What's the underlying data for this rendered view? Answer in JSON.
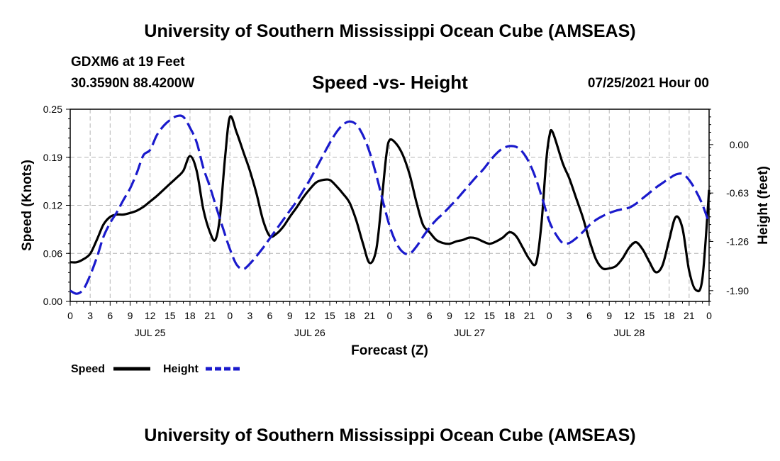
{
  "header": {
    "title": "University of Southern Mississippi Ocean Cube (AMSEAS)",
    "station": "GDXM6 at 19 Feet",
    "coords": "30.3590N  88.4200W",
    "datetime": "07/25/2021 Hour 00"
  },
  "footer": {
    "title": "University of Southern Mississippi Ocean Cube (AMSEAS)"
  },
  "colors": {
    "speed": "#000000",
    "height": "#1a1acc",
    "grid": "#b4b4b4"
  },
  "chart_data": {
    "type": "line",
    "title": "Speed -vs- Height",
    "xlabel": "Forecast (Z)",
    "ylabel": "Speed (Knots)",
    "y2label": "Height (feet)",
    "xlim": [
      0,
      96
    ],
    "ylim": [
      0,
      0.25
    ],
    "y2lim": [
      -2.04,
      0.46
    ],
    "x_ticks": [
      0,
      3,
      6,
      9,
      12,
      15,
      18,
      21,
      24,
      27,
      30,
      33,
      36,
      39,
      42,
      45,
      48,
      51,
      54,
      57,
      60,
      63,
      66,
      69,
      72,
      75,
      78,
      81,
      84,
      87,
      90,
      93,
      96
    ],
    "x_tick_labels": [
      "0",
      "3",
      "6",
      "9",
      "12",
      "15",
      "18",
      "21",
      "0",
      "3",
      "6",
      "9",
      "12",
      "15",
      "18",
      "21",
      "0",
      "3",
      "6",
      "9",
      "12",
      "15",
      "18",
      "21",
      "0",
      "3",
      "6",
      "9",
      "12",
      "15",
      "18",
      "21",
      "0"
    ],
    "day_labels": [
      {
        "hour": 12,
        "label": "JUL 25"
      },
      {
        "hour": 36,
        "label": "JUL 26"
      },
      {
        "hour": 60,
        "label": "JUL 27"
      },
      {
        "hour": 84,
        "label": "JUL 28"
      }
    ],
    "y_ticks": [
      0,
      0.0625,
      0.125,
      0.1875,
      0.25
    ],
    "y_tick_labels": [
      "0.00",
      "0.06",
      "0.12",
      "0.19",
      "0.25"
    ],
    "y2_ticks": [
      0.0,
      -0.63,
      -1.26,
      -1.9
    ],
    "y2_tick_labels": [
      "0.00",
      "-0.63",
      "-1.26",
      "-1.90"
    ],
    "series": [
      {
        "name": "Speed",
        "axis": "left",
        "style": "solid",
        "points": [
          [
            0,
            0.051
          ],
          [
            1,
            0.051
          ],
          [
            2,
            0.055
          ],
          [
            3,
            0.062
          ],
          [
            4,
            0.08
          ],
          [
            5,
            0.1
          ],
          [
            6,
            0.11
          ],
          [
            7,
            0.113
          ],
          [
            8,
            0.113
          ],
          [
            9,
            0.115
          ],
          [
            10,
            0.118
          ],
          [
            11,
            0.123
          ],
          [
            12,
            0.13
          ],
          [
            13,
            0.137
          ],
          [
            14,
            0.145
          ],
          [
            15,
            0.153
          ],
          [
            16,
            0.161
          ],
          [
            17,
            0.17
          ],
          [
            18,
            0.189
          ],
          [
            19,
            0.17
          ],
          [
            20,
            0.12
          ],
          [
            21,
            0.09
          ],
          [
            21.8,
            0.08
          ],
          [
            22.5,
            0.11
          ],
          [
            23.3,
            0.19
          ],
          [
            24,
            0.24
          ],
          [
            25,
            0.22
          ],
          [
            26,
            0.195
          ],
          [
            27,
            0.17
          ],
          [
            28,
            0.14
          ],
          [
            29,
            0.105
          ],
          [
            30,
            0.085
          ],
          [
            31,
            0.088
          ],
          [
            32,
            0.097
          ],
          [
            33,
            0.11
          ],
          [
            34,
            0.122
          ],
          [
            35,
            0.135
          ],
          [
            36,
            0.146
          ],
          [
            37,
            0.155
          ],
          [
            38,
            0.158
          ],
          [
            39,
            0.158
          ],
          [
            40,
            0.15
          ],
          [
            41,
            0.14
          ],
          [
            42,
            0.128
          ],
          [
            43,
            0.105
          ],
          [
            44,
            0.075
          ],
          [
            45,
            0.05
          ],
          [
            46,
            0.068
          ],
          [
            46.8,
            0.13
          ],
          [
            47.5,
            0.19
          ],
          [
            48,
            0.21
          ],
          [
            49,
            0.205
          ],
          [
            50,
            0.19
          ],
          [
            51,
            0.165
          ],
          [
            52,
            0.13
          ],
          [
            53,
            0.1
          ],
          [
            54,
            0.09
          ],
          [
            55,
            0.08
          ],
          [
            56,
            0.076
          ],
          [
            57,
            0.075
          ],
          [
            58,
            0.078
          ],
          [
            59,
            0.08
          ],
          [
            60,
            0.083
          ],
          [
            61,
            0.082
          ],
          [
            62,
            0.078
          ],
          [
            63,
            0.075
          ],
          [
            64,
            0.078
          ],
          [
            65,
            0.083
          ],
          [
            66,
            0.09
          ],
          [
            67,
            0.085
          ],
          [
            68,
            0.07
          ],
          [
            69,
            0.055
          ],
          [
            70,
            0.05
          ],
          [
            70.8,
            0.1
          ],
          [
            71.5,
            0.18
          ],
          [
            72,
            0.215
          ],
          [
            72.5,
            0.22
          ],
          [
            74,
            0.18
          ],
          [
            75,
            0.16
          ],
          [
            76,
            0.135
          ],
          [
            77,
            0.11
          ],
          [
            78,
            0.08
          ],
          [
            79,
            0.055
          ],
          [
            80,
            0.043
          ],
          [
            81,
            0.043
          ],
          [
            82,
            0.046
          ],
          [
            83,
            0.056
          ],
          [
            84,
            0.07
          ],
          [
            85,
            0.077
          ],
          [
            86,
            0.068
          ],
          [
            87,
            0.052
          ],
          [
            88,
            0.038
          ],
          [
            89,
            0.047
          ],
          [
            90,
            0.08
          ],
          [
            91,
            0.11
          ],
          [
            92,
            0.095
          ],
          [
            93,
            0.04
          ],
          [
            94,
            0.015
          ],
          [
            95,
            0.03
          ],
          [
            96,
            0.145
          ]
        ]
      },
      {
        "name": "Height",
        "axis": "right",
        "style": "dashed",
        "points": [
          [
            0,
            -1.9
          ],
          [
            1,
            -1.94
          ],
          [
            2,
            -1.88
          ],
          [
            3,
            -1.7
          ],
          [
            4,
            -1.47
          ],
          [
            5,
            -1.2
          ],
          [
            6,
            -1.02
          ],
          [
            7,
            -0.88
          ],
          [
            8,
            -0.72
          ],
          [
            9,
            -0.57
          ],
          [
            10,
            -0.37
          ],
          [
            11,
            -0.14
          ],
          [
            12,
            -0.07
          ],
          [
            13,
            0.12
          ],
          [
            14,
            0.24
          ],
          [
            15,
            0.32
          ],
          [
            16,
            0.37
          ],
          [
            17,
            0.36
          ],
          [
            18,
            0.22
          ],
          [
            19,
            0.03
          ],
          [
            20,
            -0.3
          ],
          [
            21,
            -0.55
          ],
          [
            22,
            -0.83
          ],
          [
            23,
            -1.1
          ],
          [
            24,
            -1.36
          ],
          [
            25,
            -1.56
          ],
          [
            26,
            -1.62
          ],
          [
            27,
            -1.55
          ],
          [
            28,
            -1.45
          ],
          [
            29,
            -1.34
          ],
          [
            30,
            -1.22
          ],
          [
            31,
            -1.1
          ],
          [
            32,
            -0.98
          ],
          [
            33,
            -0.86
          ],
          [
            34,
            -0.74
          ],
          [
            35,
            -0.6
          ],
          [
            36,
            -0.46
          ],
          [
            37,
            -0.3
          ],
          [
            38,
            -0.14
          ],
          [
            39,
            0.02
          ],
          [
            40,
            0.16
          ],
          [
            41,
            0.26
          ],
          [
            42,
            0.3
          ],
          [
            43,
            0.26
          ],
          [
            44,
            0.12
          ],
          [
            45,
            -0.1
          ],
          [
            46,
            -0.4
          ],
          [
            47,
            -0.74
          ],
          [
            48,
            -1.06
          ],
          [
            49,
            -1.28
          ],
          [
            50,
            -1.4
          ],
          [
            51,
            -1.42
          ],
          [
            52,
            -1.33
          ],
          [
            53,
            -1.2
          ],
          [
            54,
            -1.08
          ],
          [
            55,
            -0.98
          ],
          [
            56,
            -0.9
          ],
          [
            57,
            -0.81
          ],
          [
            58,
            -0.72
          ],
          [
            59,
            -0.62
          ],
          [
            60,
            -0.52
          ],
          [
            61,
            -0.42
          ],
          [
            62,
            -0.33
          ],
          [
            63,
            -0.22
          ],
          [
            64,
            -0.12
          ],
          [
            65,
            -0.05
          ],
          [
            66,
            -0.02
          ],
          [
            67,
            -0.03
          ],
          [
            68,
            -0.1
          ],
          [
            69,
            -0.24
          ],
          [
            70,
            -0.45
          ],
          [
            71,
            -0.72
          ],
          [
            72,
            -1.0
          ],
          [
            73,
            -1.17
          ],
          [
            74,
            -1.28
          ],
          [
            75,
            -1.28
          ],
          [
            76,
            -1.22
          ],
          [
            77,
            -1.14
          ],
          [
            78,
            -1.05
          ],
          [
            79,
            -0.98
          ],
          [
            80,
            -0.93
          ],
          [
            81,
            -0.89
          ],
          [
            82,
            -0.86
          ],
          [
            83,
            -0.84
          ],
          [
            84,
            -0.82
          ],
          [
            85,
            -0.77
          ],
          [
            86,
            -0.7
          ],
          [
            87,
            -0.63
          ],
          [
            88,
            -0.56
          ],
          [
            89,
            -0.5
          ],
          [
            90,
            -0.44
          ],
          [
            91,
            -0.39
          ],
          [
            92,
            -0.38
          ],
          [
            93,
            -0.46
          ],
          [
            94,
            -0.6
          ],
          [
            95,
            -0.78
          ],
          [
            96,
            -1.02
          ]
        ]
      }
    ],
    "legend": {
      "placement": "bottom-left",
      "entries": [
        {
          "label": "Speed",
          "style": "solid"
        },
        {
          "label": "Height",
          "style": "dashed"
        }
      ]
    }
  }
}
